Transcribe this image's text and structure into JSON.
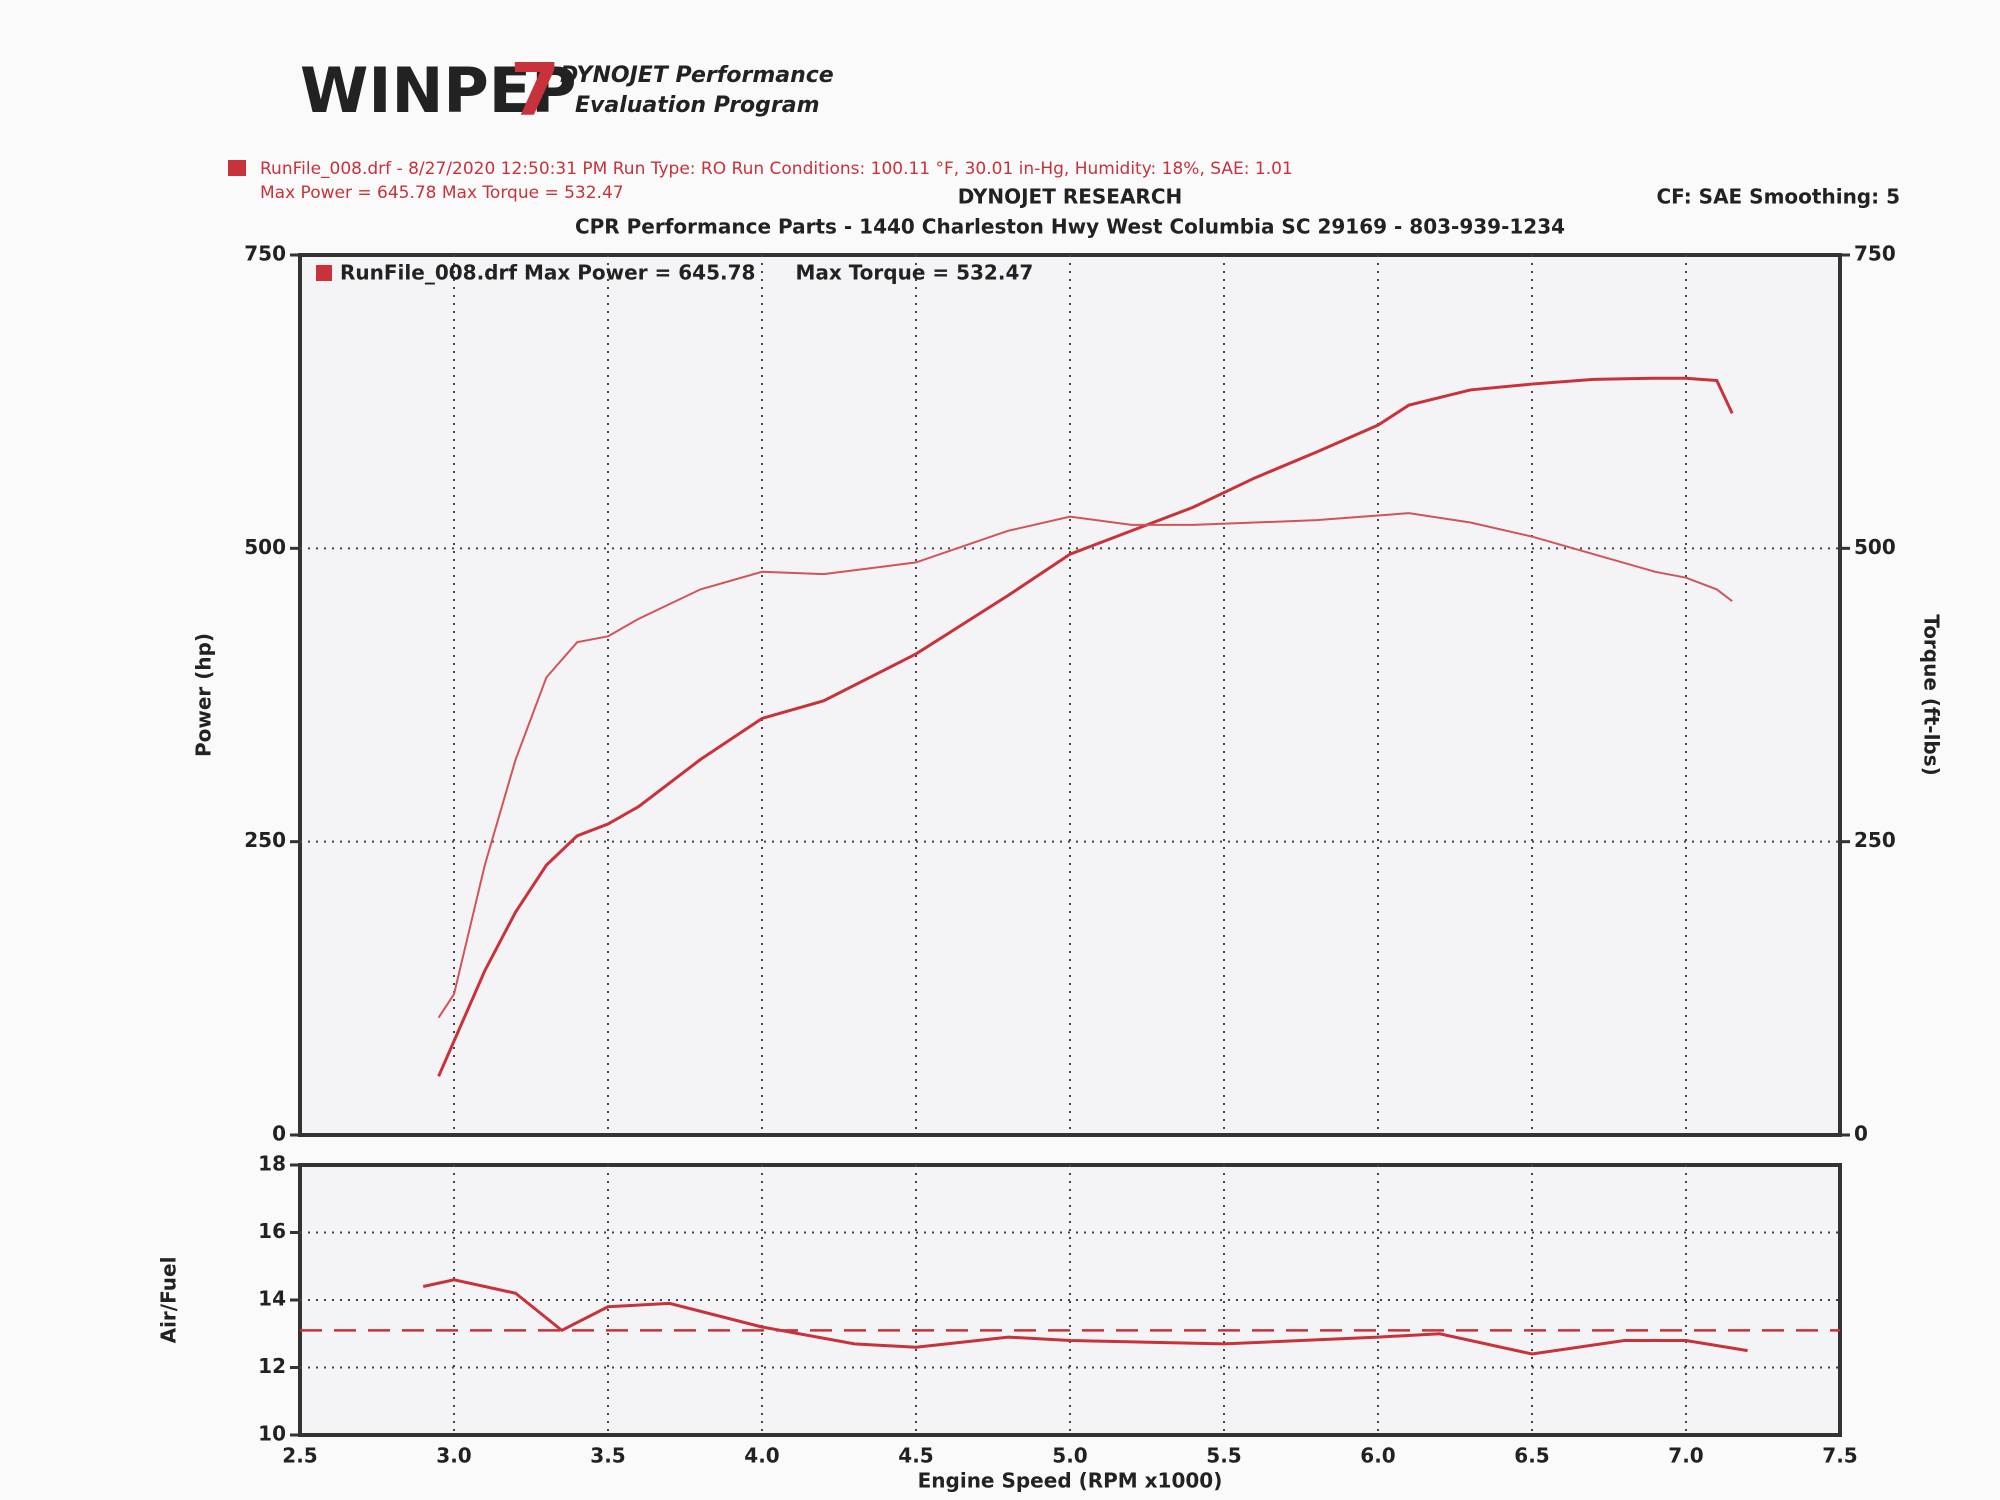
{
  "header": {
    "logo": "WINPEP",
    "logo_number": "7",
    "program_line1": "DYNOJET Performance",
    "program_line2": "Evaluation Program",
    "run_info": "RunFile_008.drf - 8/27/2020 12:50:31 PM  Run Type: RO  Run Conditions: 100.11 °F, 30.01 in-Hg, Humidity: 18%, SAE: 1.01",
    "run_max": "Max Power = 645.78  Max Torque = 532.47",
    "company": "DYNOJET RESEARCH",
    "settings": "CF: SAE  Smoothing: 5",
    "shop": "CPR Performance Parts - 1440 Charleston Hwy West Columbia SC 29169 - 803-939-1234"
  },
  "chart_data": [
    {
      "type": "line",
      "ylabel": "Power (hp)",
      "y2label": "Torque (ft-lbs)",
      "x": [
        2.95,
        3.0,
        3.1,
        3.2,
        3.3,
        3.4,
        3.5,
        3.6,
        3.8,
        4.0,
        4.2,
        4.5,
        4.8,
        5.0,
        5.2,
        5.4,
        5.6,
        5.8,
        6.0,
        6.1,
        6.3,
        6.5,
        6.7,
        6.9,
        7.0,
        7.1,
        7.15
      ],
      "series": [
        {
          "name": "RunFile_008.drf Max Power = 645.78",
          "color": "#c8323a",
          "values": [
            50,
            80,
            140,
            190,
            230,
            255,
            265,
            280,
            320,
            355,
            370,
            410,
            460,
            495,
            515,
            535,
            560,
            582,
            605,
            622,
            635,
            640,
            644,
            645,
            645,
            643,
            615
          ]
        },
        {
          "name": "Max Torque = 532.47",
          "color": "#d0545b",
          "axis": "y2",
          "values": [
            100,
            120,
            230,
            320,
            390,
            420,
            425,
            440,
            465,
            480,
            478,
            488,
            515,
            527,
            520,
            520,
            522,
            524,
            528,
            530,
            522,
            510,
            495,
            480,
            475,
            465,
            455
          ]
        }
      ],
      "ylim": [
        0,
        750
      ],
      "yticks": [
        0,
        250,
        500,
        750
      ],
      "y2lim": [
        0,
        750
      ],
      "y2ticks": [
        0,
        250,
        500,
        750
      ],
      "grid": true
    },
    {
      "type": "line",
      "ylabel": "Air/Fuel",
      "xlabel": "Engine Speed (RPM x1000)",
      "x": [
        2.9,
        3.0,
        3.2,
        3.35,
        3.5,
        3.7,
        4.0,
        4.3,
        4.5,
        4.8,
        5.0,
        5.5,
        6.0,
        6.2,
        6.5,
        6.8,
        7.0,
        7.2
      ],
      "series": [
        {
          "color": "#c8323a",
          "values": [
            14.4,
            14.6,
            14.2,
            13.1,
            13.8,
            13.9,
            13.2,
            12.7,
            12.6,
            12.9,
            12.8,
            12.7,
            12.9,
            13.0,
            12.4,
            12.8,
            12.8,
            12.5
          ]
        }
      ],
      "reference": 13.1,
      "xlim": [
        2.5,
        7.5
      ],
      "xticks": [
        2.5,
        {
          "value": 3,
          "label": "3.0"
        },
        3.5,
        {
          "value": 4,
          "label": "4.0"
        },
        4.5,
        {
          "value": 5,
          "label": "5.0"
        },
        5.5,
        {
          "value": 6,
          "label": "6.0"
        },
        6.5,
        {
          "value": 7,
          "label": "7.0"
        },
        7.5
      ],
      "ylim": [
        10,
        18
      ],
      "yticks": [
        10,
        12,
        14,
        16,
        18
      ],
      "grid": true
    }
  ]
}
